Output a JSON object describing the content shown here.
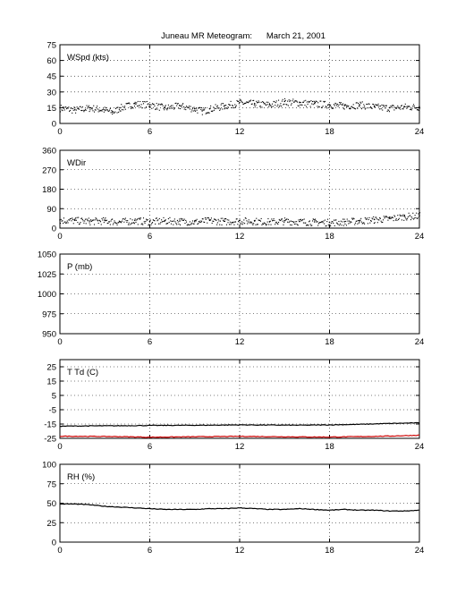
{
  "figure": {
    "title": "Juneau MR Meteogram:      March 21, 2001"
  },
  "chart_data": [
    {
      "type": "scatter",
      "panel_label": "WSpd (kts)",
      "xlim": [
        0,
        24
      ],
      "ylim": [
        0,
        75
      ],
      "x_ticks": [
        0,
        6,
        12,
        18,
        24
      ],
      "y_ticks": [
        0,
        15,
        30,
        45,
        60,
        75
      ],
      "grid": true,
      "series": [
        {
          "color": "#000000",
          "x": [
            0,
            1,
            2,
            3,
            3.5,
            4,
            5,
            6,
            7,
            8,
            9,
            9.5,
            10,
            11,
            12,
            13,
            14,
            15,
            16,
            17,
            18,
            19,
            20,
            21,
            22,
            23,
            24
          ],
          "y": [
            15,
            13,
            15,
            13,
            11,
            15,
            19,
            18,
            15,
            17,
            14,
            12,
            14,
            17,
            20,
            19,
            18,
            21,
            20,
            19,
            18,
            17,
            18,
            16,
            15,
            16,
            16
          ]
        }
      ]
    },
    {
      "type": "scatter",
      "panel_label": "WDir",
      "xlim": [
        0,
        24
      ],
      "ylim": [
        0,
        360
      ],
      "x_ticks": [
        0,
        6,
        12,
        18,
        24
      ],
      "y_ticks": [
        0,
        90,
        180,
        270,
        360
      ],
      "grid": true,
      "series": [
        {
          "color": "#000000",
          "x": [
            0,
            1,
            2,
            3,
            4,
            5,
            6,
            7,
            8,
            9,
            10,
            11,
            12,
            13,
            14,
            15,
            16,
            17,
            18,
            19,
            20,
            21,
            22,
            23,
            24
          ],
          "y": [
            38,
            36,
            33,
            35,
            30,
            36,
            31,
            35,
            33,
            30,
            36,
            32,
            35,
            33,
            30,
            34,
            31,
            29,
            27,
            30,
            35,
            40,
            45,
            55,
            58
          ]
        }
      ]
    },
    {
      "type": "line",
      "panel_label": "P (mb)",
      "xlim": [
        0,
        24
      ],
      "ylim": [
        950,
        1050
      ],
      "x_ticks": [
        0,
        6,
        12,
        18,
        24
      ],
      "y_ticks": [
        950,
        975,
        1000,
        1025,
        1050
      ],
      "grid": true,
      "series": []
    },
    {
      "type": "line",
      "panel_label": "T Td (C)",
      "xlim": [
        0,
        24
      ],
      "ylim": [
        -25,
        30
      ],
      "x_ticks": [
        0,
        6,
        12,
        18,
        24
      ],
      "y_ticks": [
        -25,
        -15,
        -5,
        5,
        15,
        25
      ],
      "grid": true,
      "series": [
        {
          "color": "#000000",
          "x": [
            0,
            2,
            4,
            6,
            8,
            10,
            12,
            14,
            16,
            18,
            20,
            22,
            24
          ],
          "y": [
            -16.5,
            -16.3,
            -16.2,
            -16,
            -15.9,
            -15.8,
            -15.6,
            -15.7,
            -15.8,
            -15.6,
            -15.2,
            -14.6,
            -14.2
          ]
        },
        {
          "color": "#cc0000",
          "x": [
            0,
            2,
            4,
            6,
            8,
            10,
            12,
            14,
            16,
            18,
            20,
            22,
            24
          ],
          "y": [
            -23.5,
            -23.6,
            -23.8,
            -24.2,
            -24,
            -23.8,
            -23.6,
            -23.8,
            -24,
            -24.1,
            -23.8,
            -23.4,
            -22.8
          ]
        }
      ]
    },
    {
      "type": "line",
      "panel_label": "RH (%)",
      "xlim": [
        0,
        24
      ],
      "ylim": [
        0,
        100
      ],
      "x_ticks": [
        0,
        6,
        12,
        18,
        24
      ],
      "y_ticks": [
        0,
        25,
        50,
        75,
        100
      ],
      "grid": true,
      "series": [
        {
          "color": "#000000",
          "x": [
            0,
            1,
            2,
            3,
            4,
            5,
            6,
            7,
            8,
            9,
            10,
            11,
            12,
            13,
            14,
            15,
            16,
            17,
            18,
            19,
            20,
            21,
            22,
            23,
            24
          ],
          "y": [
            49,
            49,
            48,
            46,
            45,
            44,
            43,
            42,
            42,
            42,
            43,
            43,
            44,
            43,
            42,
            42,
            43,
            42,
            41,
            42,
            41,
            41,
            40,
            40,
            41
          ]
        }
      ]
    }
  ]
}
